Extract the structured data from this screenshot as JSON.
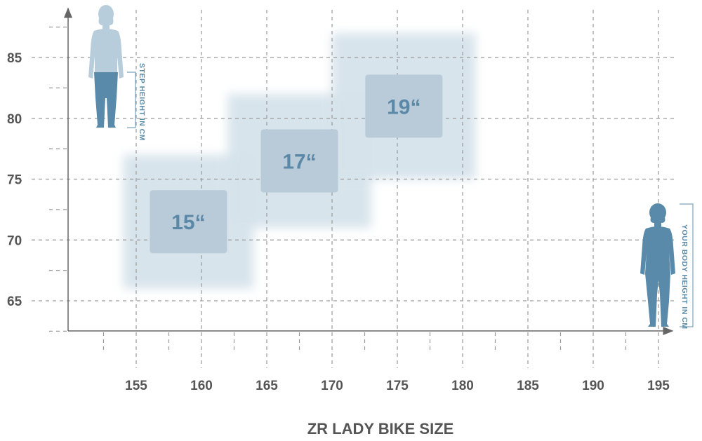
{
  "chart_data": {
    "type": "heatmap",
    "title": "ZR LADY BIKE SIZE",
    "xlabel": "YOUR BODY HEIGHT IN CM",
    "ylabel": "STEP HEIGHT IN CM",
    "xlim": [
      150,
      197
    ],
    "ylim": [
      62,
      89
    ],
    "x_ticks": [
      155,
      160,
      165,
      170,
      175,
      180,
      185,
      190,
      195
    ],
    "y_ticks": [
      65,
      70,
      75,
      80,
      85
    ],
    "grid": true,
    "sizes": [
      {
        "label": "15“",
        "body_height": [
          154,
          164
        ],
        "step_height": [
          66,
          77
        ]
      },
      {
        "label": "17“",
        "body_height": [
          162,
          173
        ],
        "step_height": [
          71,
          82
        ]
      },
      {
        "label": "19“",
        "body_height": [
          170,
          181
        ],
        "step_height": [
          75,
          87
        ]
      }
    ]
  },
  "colors": {
    "glow": "#d6e3eb",
    "box": "#b9cbd9",
    "label": "#5b88a6",
    "figure_light": "#b8cddc",
    "figure_dark": "#5a8aa9",
    "grid": "#9a9a9a",
    "axis": "#666666"
  },
  "icons": [
    "woman-silhouette-step-height",
    "woman-silhouette-body-height"
  ]
}
